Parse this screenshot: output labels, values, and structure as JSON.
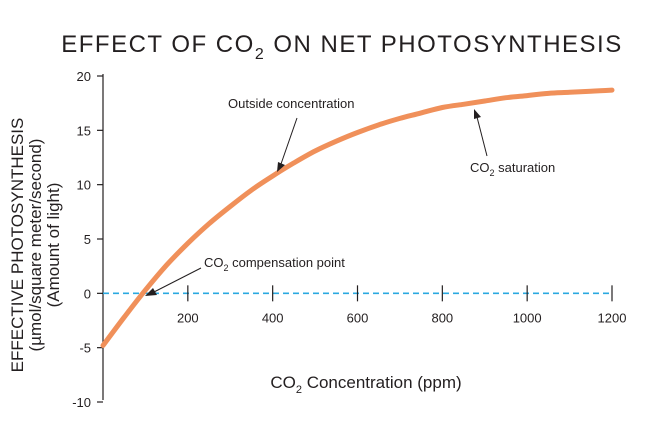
{
  "chart_data": {
    "type": "line",
    "title": {
      "prefix": "EFFECT OF CO",
      "sub": "2",
      "suffix": " ON NET PHOTOSYNTHESIS"
    },
    "xlabel": {
      "prefix": "CO",
      "sub": "2",
      "suffix": " Concentration (ppm)"
    },
    "ylabel": [
      "EFFECTIVE PHOTOSYNTHESIS",
      "(µmol/square meter/second)",
      "(Amount of light)"
    ],
    "xlim": [
      0,
      1200
    ],
    "ylim": [
      -10,
      20
    ],
    "x_ticks": [
      200,
      400,
      600,
      800,
      1000,
      1200
    ],
    "x_tick_labels": [
      "200",
      "400",
      "600",
      "800",
      "1000",
      "1200"
    ],
    "y_ticks": [
      -10,
      -5,
      0,
      5,
      10,
      15,
      20
    ],
    "y_tick_labels": [
      "-10",
      "-5",
      "0",
      "5",
      "10",
      "15",
      "20"
    ],
    "series": [
      {
        "color": "#f0905a",
        "x": [
          0,
          50,
          100,
          150,
          200,
          250,
          300,
          350,
          400,
          450,
          500,
          550,
          600,
          650,
          700,
          750,
          800,
          850,
          900,
          950,
          1000,
          1050,
          1100,
          1150,
          1200
        ],
        "y": [
          -4.8,
          -2.2,
          0.3,
          2.6,
          4.6,
          6.4,
          8.0,
          9.5,
          10.8,
          12.0,
          13.1,
          14.0,
          14.8,
          15.5,
          16.1,
          16.6,
          17.1,
          17.4,
          17.7,
          18.0,
          18.2,
          18.4,
          18.5,
          18.6,
          18.7
        ]
      }
    ],
    "reference_line": {
      "y": 0,
      "style": "dashed",
      "color": "#2aa9e0"
    },
    "annotations": [
      {
        "id": "outside",
        "text": {
          "prefix": "Outside concentration",
          "sub": "",
          "suffix": ""
        },
        "x": 405,
        "y": 10.9
      },
      {
        "id": "saturation",
        "text": {
          "prefix": "CO",
          "sub": "2",
          "suffix": " saturation"
        },
        "x": 880,
        "y": 17.5
      },
      {
        "id": "compensation",
        "text": {
          "prefix": "CO",
          "sub": "2",
          "suffix": " compensation point"
        },
        "x": 90,
        "y": 0
      }
    ]
  }
}
